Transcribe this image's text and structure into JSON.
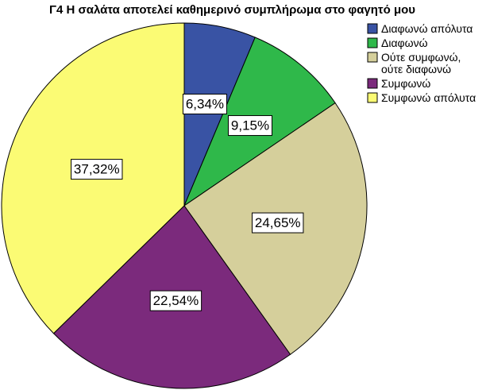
{
  "chart_data": {
    "type": "pie",
    "title": "Γ4 Η σαλάτα αποτελεί καθημερινό συμπλήρωμα στο φαγητό μου",
    "slices": [
      {
        "label": "Διαφωνώ απόλυτα",
        "legend_lines": [
          "Διαφωνώ απόλυτα"
        ],
        "value": 6.34,
        "display": "6,34%",
        "color": "#3953a4"
      },
      {
        "label": "Διαφωνώ",
        "legend_lines": [
          "Διαφωνώ"
        ],
        "value": 9.15,
        "display": "9,15%",
        "color": "#2fb84a"
      },
      {
        "label": "Ούτε συμφωνώ, ούτε διαφωνώ",
        "legend_lines": [
          "Ούτε συμφωνώ,",
          "ούτε διαφωνώ"
        ],
        "value": 24.65,
        "display": "24,65%",
        "color": "#d5cf9b"
      },
      {
        "label": "Συμφωνώ",
        "legend_lines": [
          "Συμφωνώ"
        ],
        "value": 22.54,
        "display": "22,54%",
        "color": "#7b2a7c"
      },
      {
        "label": "Συμφωνώ απόλυτα",
        "legend_lines": [
          "Συμφωνώ απόλυτα"
        ],
        "value": 37.32,
        "display": "37,32%",
        "color": "#fbfb74"
      }
    ],
    "legend_placement": "top-right"
  }
}
